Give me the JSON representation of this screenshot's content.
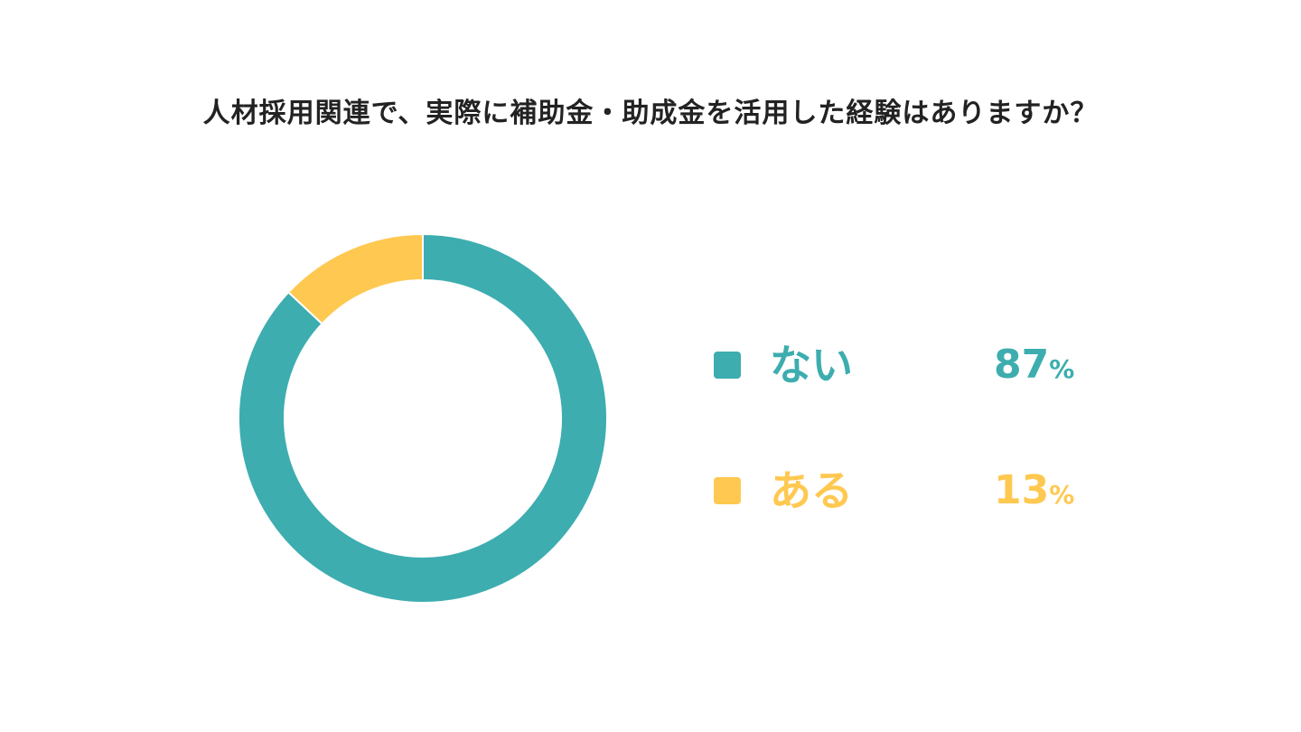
{
  "chart_data": {
    "type": "pie",
    "title": "人材採用関連で、実際に補助金・助成金を活用した経験はありますか？",
    "unit": "%",
    "slices": [
      {
        "label": "ない",
        "value": 87,
        "color": "#3DADAF"
      },
      {
        "label": "ある",
        "value": 13,
        "color": "#FFC850"
      }
    ],
    "legend_position": "right"
  }
}
